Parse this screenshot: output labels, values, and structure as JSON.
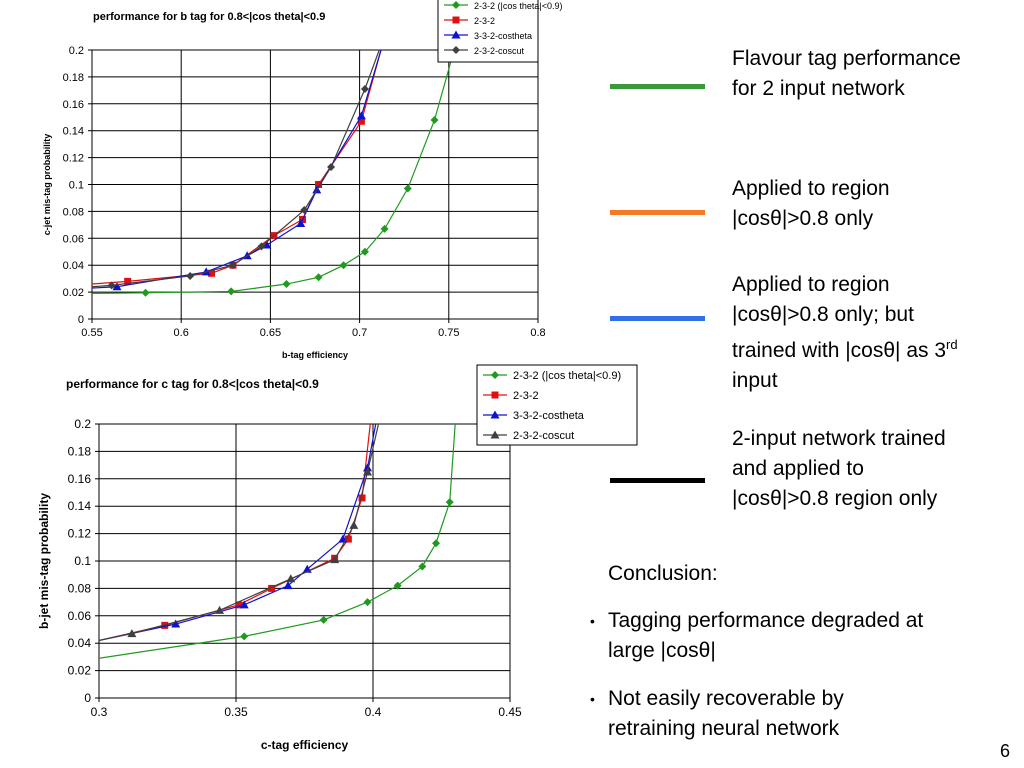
{
  "key": [
    {
      "color": "#3a9a3a",
      "text": "Flavour tag performance for 2 input network"
    },
    {
      "color": "#f57a26",
      "text": "Applied to region |cosθ|>0.8 only"
    },
    {
      "color": "#2f6fe8",
      "text": "Applied to region |cosθ|>0.8 only; but trained with |cosθ| as 3rd input"
    },
    {
      "color": "#000000",
      "text": "2-input network trained and applied to |cosθ|>0.8 region only"
    }
  ],
  "conclusion": {
    "heading": "Conclusion:",
    "bullets": [
      "Tagging performance degraded at large |cosθ|",
      "Not easily recoverable by retraining neural network"
    ]
  },
  "page_number": "6",
  "chart_data": [
    {
      "type": "line",
      "title": "performance for b tag for 0.8<|cos theta|<0.9",
      "xlabel": "b-tag efficiency",
      "ylabel": "c-jet mis-tag probability",
      "xlim": [
        0.55,
        0.8
      ],
      "ylim": [
        0,
        0.2
      ],
      "xticks": [
        "0.55",
        "0.6",
        "0.65",
        "0.7",
        "0.75",
        "0.8"
      ],
      "yticks": [
        "0",
        "0.02",
        "0.04",
        "0.06",
        "0.08",
        "0.1",
        "0.12",
        "0.14",
        "0.16",
        "0.18",
        "0.2"
      ],
      "grid": true,
      "legend_position": "top-right",
      "series": [
        {
          "name": "2-3-2 (|cos theta|<0.9)",
          "color": "#1f9a1f",
          "marker": "diamond",
          "x": [
            0.55,
            0.58,
            0.628,
            0.659,
            0.677,
            0.691,
            0.703,
            0.714,
            0.727,
            0.742,
            0.753
          ],
          "y": [
            0.019,
            0.0195,
            0.0205,
            0.026,
            0.031,
            0.04,
            0.05,
            0.067,
            0.097,
            0.148,
            0.2
          ]
        },
        {
          "name": "2-3-2",
          "color": "#e01010",
          "marker": "square",
          "x": [
            0.55,
            0.57,
            0.617,
            0.629,
            0.652,
            0.668,
            0.677,
            0.701,
            0.712
          ],
          "y": [
            0.026,
            0.028,
            0.034,
            0.04,
            0.062,
            0.074,
            0.1,
            0.147,
            0.2
          ]
        },
        {
          "name": "3-3-2-costheta",
          "color": "#1010d0",
          "marker": "triangle",
          "x": [
            0.55,
            0.564,
            0.614,
            0.637,
            0.648,
            0.667,
            0.676,
            0.701,
            0.712
          ],
          "y": [
            0.023,
            0.024,
            0.035,
            0.047,
            0.055,
            0.071,
            0.096,
            0.151,
            0.2
          ]
        },
        {
          "name": "2-3-2-coscut",
          "color": "#404040",
          "marker": "diamond",
          "x": [
            0.55,
            0.561,
            0.605,
            0.629,
            0.645,
            0.669,
            0.684,
            0.703,
            0.711
          ],
          "y": [
            0.024,
            0.025,
            0.032,
            0.04,
            0.054,
            0.081,
            0.113,
            0.171,
            0.2
          ]
        }
      ]
    },
    {
      "type": "line",
      "title": "performance for c tag for 0.8<|cos theta|<0.9",
      "xlabel": "c-tag efficiency",
      "ylabel": "b-jet mis-tag probability",
      "xlim": [
        0.3,
        0.45
      ],
      "ylim": [
        0,
        0.2
      ],
      "xticks": [
        "0.3",
        "0.35",
        "0.4",
        "0.45"
      ],
      "yticks": [
        "0",
        "0.02",
        "0.04",
        "0.06",
        "0.08",
        "0.1",
        "0.12",
        "0.14",
        "0.16",
        "0.18",
        "0.2"
      ],
      "grid": true,
      "legend_position": "top-right",
      "series": [
        {
          "name": "2-3-2 (|cos theta|<0.9)",
          "color": "#1f9a1f",
          "marker": "diamond",
          "x": [
            0.3,
            0.353,
            0.382,
            0.398,
            0.409,
            0.418,
            0.423,
            0.428,
            0.43
          ],
          "y": [
            0.029,
            0.045,
            0.057,
            0.07,
            0.082,
            0.096,
            0.113,
            0.143,
            0.2
          ]
        },
        {
          "name": "2-3-2",
          "color": "#e01010",
          "marker": "square",
          "x": [
            0.3,
            0.324,
            0.351,
            0.363,
            0.386,
            0.391,
            0.396,
            0.399
          ],
          "y": [
            0.042,
            0.053,
            0.068,
            0.08,
            0.102,
            0.116,
            0.146,
            0.2
          ]
        },
        {
          "name": "3-3-2-costheta",
          "color": "#1010d0",
          "marker": "triangle",
          "x": [
            0.3,
            0.328,
            0.353,
            0.369,
            0.376,
            0.389,
            0.398,
            0.401
          ],
          "y": [
            0.042,
            0.054,
            0.068,
            0.082,
            0.094,
            0.116,
            0.168,
            0.2
          ]
        },
        {
          "name": "2-3-2-coscut",
          "color": "#404040",
          "marker": "triangle",
          "x": [
            0.3,
            0.312,
            0.344,
            0.37,
            0.386,
            0.393,
            0.398,
            0.402
          ],
          "y": [
            0.042,
            0.047,
            0.064,
            0.087,
            0.101,
            0.126,
            0.165,
            0.2
          ]
        }
      ]
    }
  ]
}
